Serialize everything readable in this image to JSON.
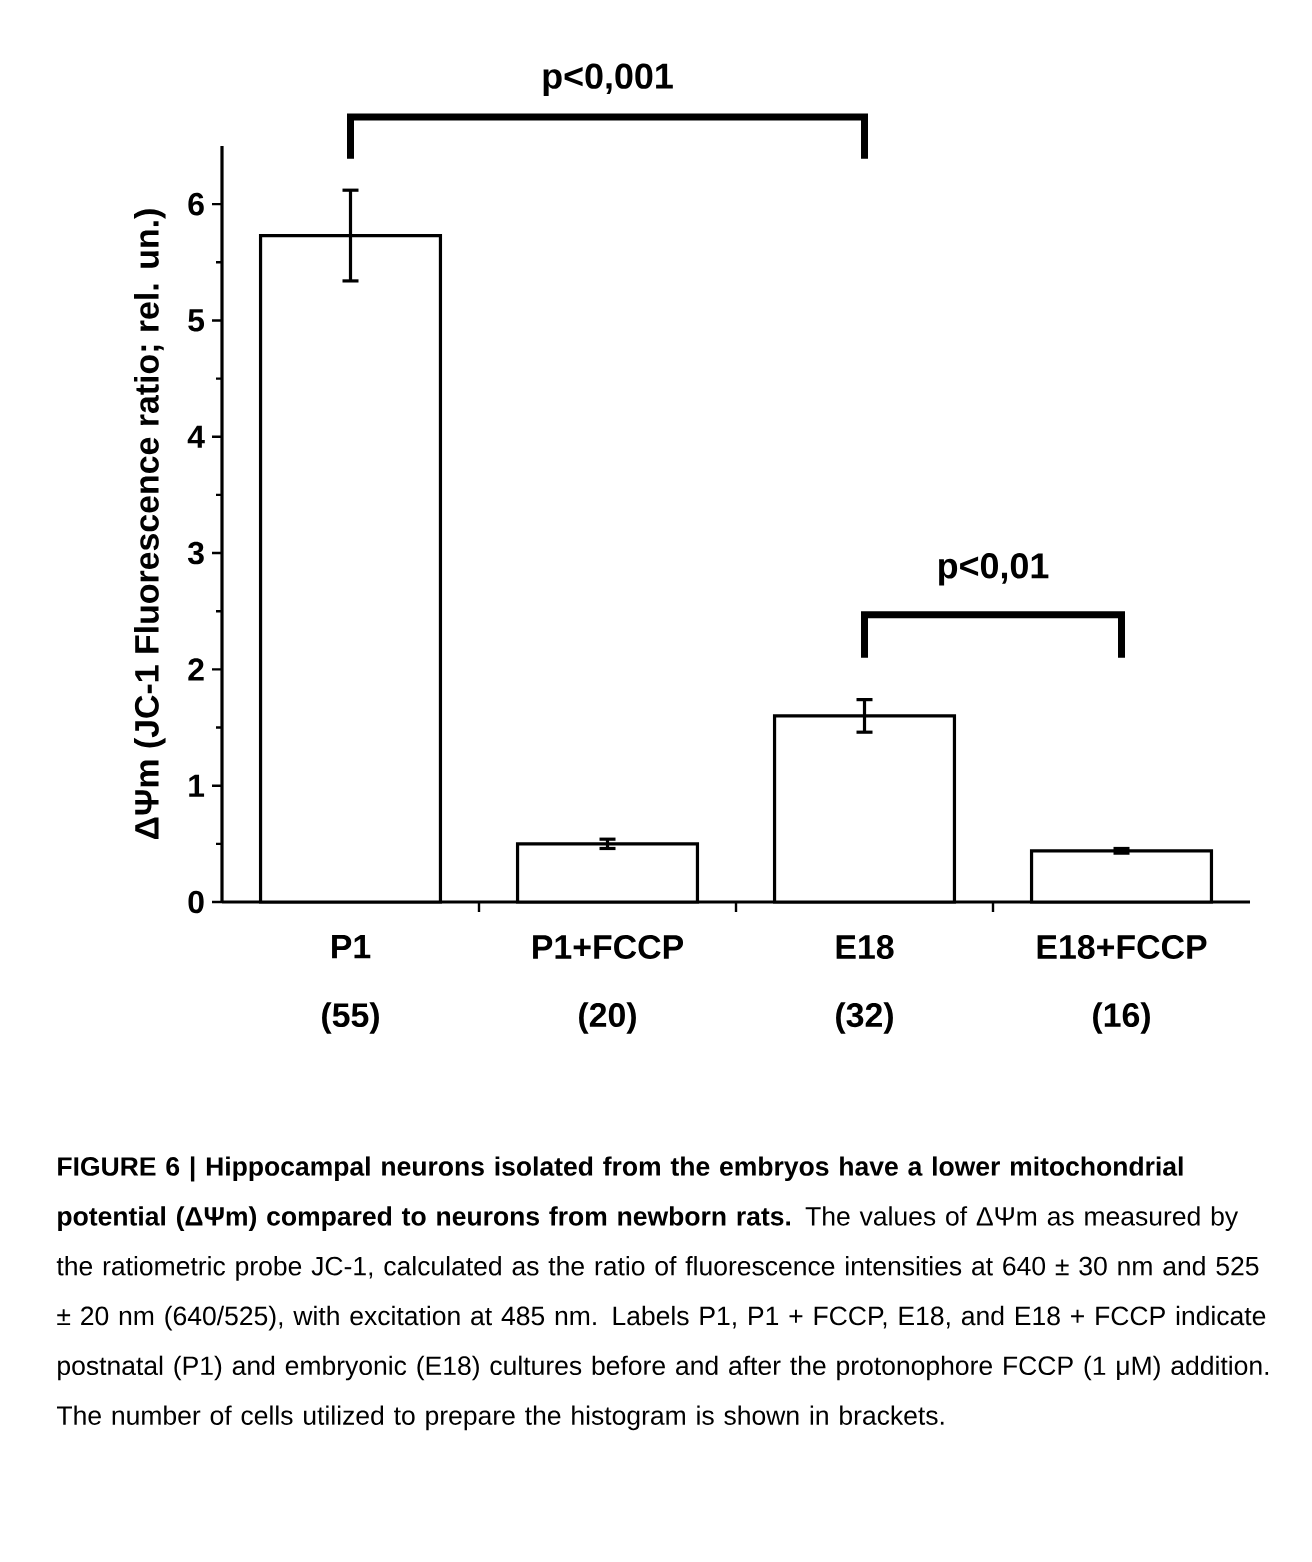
{
  "chart_data": {
    "type": "bar",
    "ylabel": "ΔΨm (JC-1 Fluorescence ratio; rel. un.)",
    "categories": [
      "P1",
      "P1+FCCP",
      "E18",
      "E18+FCCP"
    ],
    "values": [
      5.73,
      0.5,
      1.6,
      0.44
    ],
    "errors": [
      0.39,
      0.04,
      0.14,
      0.02
    ],
    "color": "#ffffff",
    "ylim": [
      0,
      6.5
    ],
    "yticks": [
      0,
      1,
      2,
      3,
      4,
      5,
      6
    ],
    "annotations": [
      "(55)",
      "(20)",
      "(32)",
      "(16)",
      "p<0,001",
      "p<0,01",
      "**FIGURE 6 | Hippocampal neurons isolated from the embryos have a lower mitochondrial potential (ΔΨm) compared to neurons from newborn rats.** The values of ΔΨm as measured by the ratiometric probe JC-1, calculated as the ratio of fluorescence intensities at 640 ± 30 nm and 525 ± 20 nm (640/525), with excitation at 485 nm. Labels P1, P1 + FCCP, E18, and E18 + FCCP indicate postnatal (P1) and embryonic (E18) cultures before and after the protonophore FCCP (1 μM) addition. The number of cells utilized to prepare the histogram is shown in brackets."
    ]
  }
}
